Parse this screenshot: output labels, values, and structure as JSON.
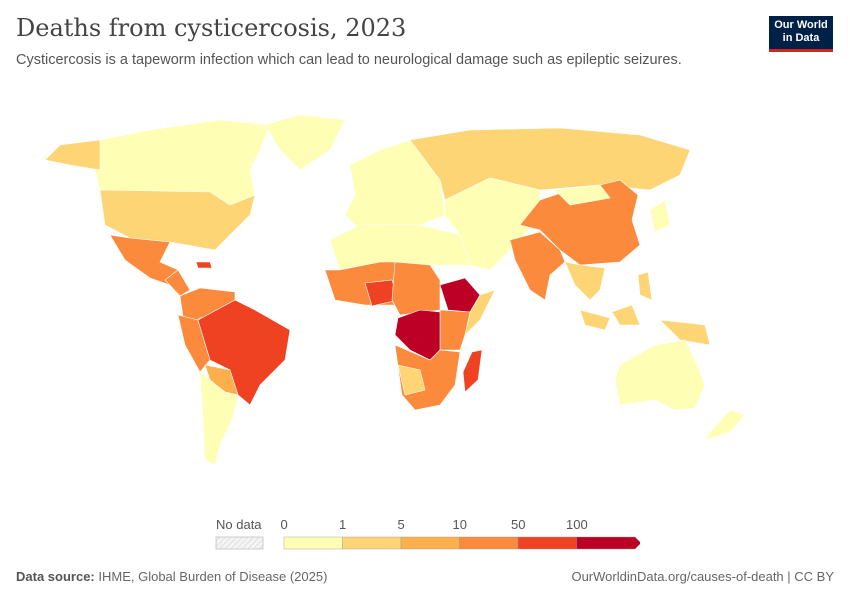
{
  "header": {
    "title": "Deaths from cysticercosis, 2023",
    "subtitle": "Cysticercosis is a tapeworm infection which can lead to neurological damage such as epileptic seizures.",
    "logo": "Our World in Data"
  },
  "legend": {
    "no_data_label": "No data",
    "ticks": [
      "0",
      "1",
      "5",
      "10",
      "50",
      "100"
    ],
    "colors": [
      "#fefeb5",
      "#fed574",
      "#fdaf4b",
      "#fb8a3c",
      "#ef4223",
      "#bc0026"
    ],
    "no_data_color": "#eeeeee"
  },
  "footer": {
    "source_label": "Data source:",
    "source": "IHME, Global Burden of Disease (2025)",
    "link": "OurWorldinData.org/causes-of-death | CC BY"
  }
}
